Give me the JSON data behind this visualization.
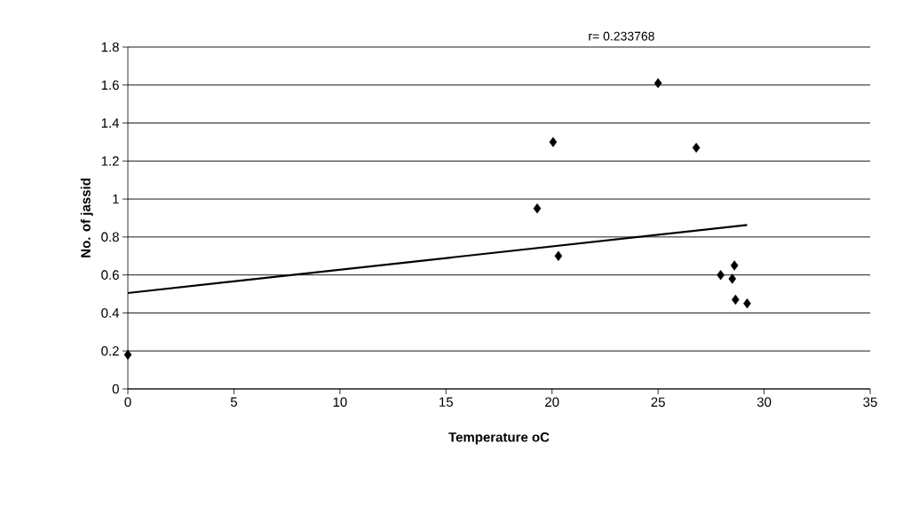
{
  "chart_data": {
    "type": "scatter",
    "xlabel": "Temperature oC",
    "ylabel": "No. of jassid",
    "annotations": [
      "r= 0.233768"
    ],
    "xlim": [
      0,
      35
    ],
    "xticks": [
      0,
      5,
      10,
      15,
      20,
      25,
      30,
      35
    ],
    "ylim": [
      0,
      1.8
    ],
    "yticks": [
      0,
      0.2,
      0.4,
      0.6,
      0.8,
      1,
      1.2,
      1.4,
      1.6,
      1.8
    ],
    "grid": "y",
    "marker": "diamond",
    "series": [
      {
        "color": "#000000",
        "x": [
          0,
          19.3,
          20.05,
          20.3,
          25.0,
          26.8,
          27.95,
          28.5,
          28.6,
          28.65,
          29.2
        ],
        "values": [
          0.18,
          0.95,
          1.3,
          0.7,
          1.61,
          1.27,
          0.6,
          0.58,
          0.65,
          0.47,
          0.45
        ]
      },
      {
        "type": "line",
        "color": "#000000",
        "marker": "none",
        "line_style": "solid",
        "x": [
          0,
          29.2
        ],
        "values": [
          0.505,
          0.863
        ]
      }
    ]
  }
}
